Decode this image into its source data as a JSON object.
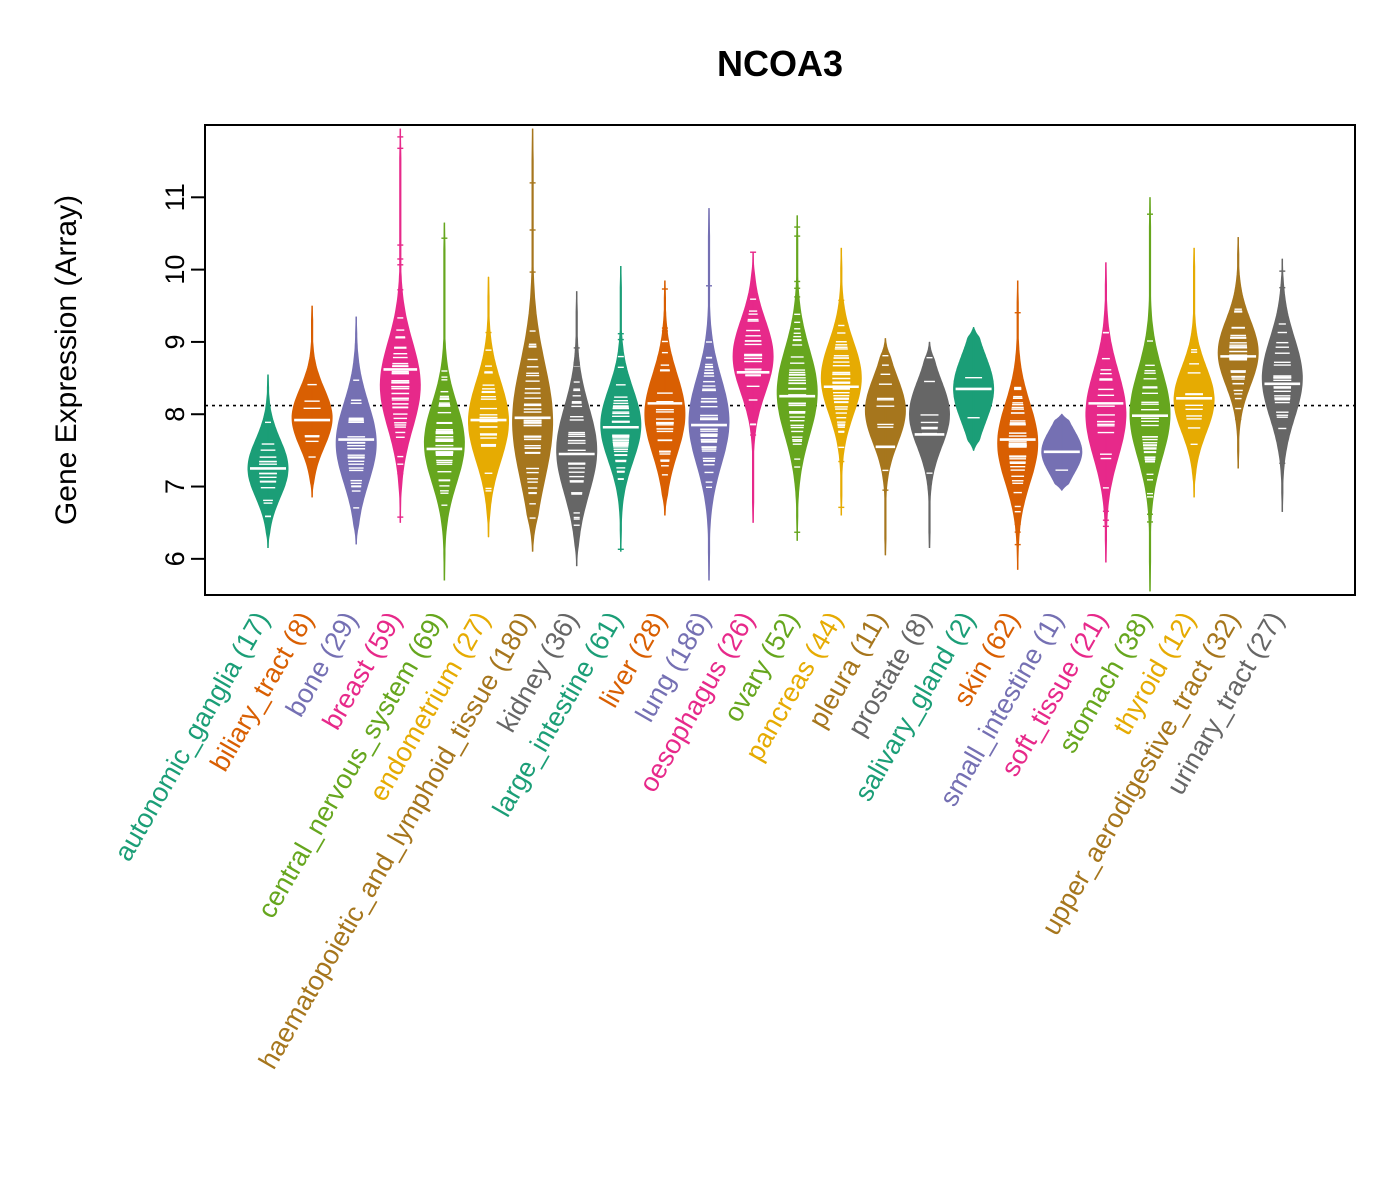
{
  "chart_data": {
    "type": "violin",
    "title": "NCOA3",
    "ylabel": "Gene Expression (Array)",
    "xlabel": "",
    "ylim": [
      5.5,
      12.0
    ],
    "yticks": [
      6,
      7,
      8,
      9,
      10,
      11
    ],
    "reference_line": 8.12,
    "grid": false,
    "categories": [
      {
        "label": "autonomic_ganglia (17)",
        "color": "#1B9E77",
        "min": 6.15,
        "max": 8.55,
        "median": 7.25,
        "mode": 7.25,
        "spread": 0.4
      },
      {
        "label": "biliary_tract (8)",
        "color": "#D95F02",
        "min": 6.85,
        "max": 9.5,
        "median": 7.92,
        "mode": 7.95,
        "spread": 0.4
      },
      {
        "label": "bone (29)",
        "color": "#7570B3",
        "min": 6.2,
        "max": 9.35,
        "median": 7.65,
        "mode": 7.6,
        "spread": 0.55
      },
      {
        "label": "breast (59)",
        "color": "#E7298A",
        "min": 6.5,
        "max": 11.95,
        "median": 8.62,
        "mode": 8.4,
        "spread": 0.6
      },
      {
        "label": "central_nervous_system (69)",
        "color": "#66A61E",
        "min": 5.7,
        "max": 10.65,
        "median": 7.52,
        "mode": 7.6,
        "spread": 0.55
      },
      {
        "label": "endometrium (27)",
        "color": "#E6AB02",
        "min": 6.3,
        "max": 9.9,
        "median": 7.92,
        "mode": 7.9,
        "spread": 0.55
      },
      {
        "label": "haematopoietic_and_lymphoid_tissue (180)",
        "color": "#A6761D",
        "min": 6.1,
        "max": 11.95,
        "median": 7.95,
        "mode": 7.9,
        "spread": 0.8
      },
      {
        "label": "kidney (36)",
        "color": "#666666",
        "min": 5.9,
        "max": 9.7,
        "median": 7.45,
        "mode": 7.5,
        "spread": 0.6
      },
      {
        "label": "large_intestine (61)",
        "color": "#1B9E77",
        "min": 6.1,
        "max": 10.05,
        "median": 7.82,
        "mode": 7.85,
        "spread": 0.5
      },
      {
        "label": "liver (28)",
        "color": "#D95F02",
        "min": 6.6,
        "max": 9.85,
        "median": 8.15,
        "mode": 8.0,
        "spread": 0.55
      },
      {
        "label": "lung (186)",
        "color": "#7570B3",
        "min": 5.7,
        "max": 10.85,
        "median": 7.85,
        "mode": 7.9,
        "spread": 0.6
      },
      {
        "label": "oesophagus (26)",
        "color": "#E7298A",
        "min": 6.5,
        "max": 10.25,
        "median": 8.58,
        "mode": 8.8,
        "spread": 0.5
      },
      {
        "label": "ovary (52)",
        "color": "#66A61E",
        "min": 6.25,
        "max": 10.75,
        "median": 8.25,
        "mode": 8.3,
        "spread": 0.6
      },
      {
        "label": "pancreas (44)",
        "color": "#E6AB02",
        "min": 6.6,
        "max": 10.3,
        "median": 8.38,
        "mode": 8.5,
        "spread": 0.5
      },
      {
        "label": "pleura (11)",
        "color": "#A6761D",
        "min": 6.05,
        "max": 9.05,
        "median": 7.55,
        "mode": 8.05,
        "spread": 0.45
      },
      {
        "label": "prostate (8)",
        "color": "#666666",
        "min": 6.15,
        "max": 9.0,
        "median": 7.72,
        "mode": 8.0,
        "spread": 0.45
      },
      {
        "label": "salivary_gland (2)",
        "color": "#1B9E77",
        "min": 7.5,
        "max": 9.2,
        "median": 8.35,
        "mode": 8.35,
        "spread": 0.45
      },
      {
        "label": "skin (62)",
        "color": "#D95F02",
        "min": 5.85,
        "max": 9.85,
        "median": 7.65,
        "mode": 7.6,
        "spread": 0.55
      },
      {
        "label": "small_intestine (1)",
        "color": "#7570B3",
        "min": 6.95,
        "max": 8.0,
        "median": 7.48,
        "mode": 7.48,
        "spread": 0.3
      },
      {
        "label": "soft_tissue (21)",
        "color": "#E7298A",
        "min": 5.95,
        "max": 10.1,
        "median": 8.15,
        "mode": 8.0,
        "spread": 0.6
      },
      {
        "label": "stomach (38)",
        "color": "#66A61E",
        "min": 5.55,
        "max": 11.0,
        "median": 7.98,
        "mode": 8.0,
        "spread": 0.6
      },
      {
        "label": "thyroid (12)",
        "color": "#E6AB02",
        "min": 6.85,
        "max": 10.3,
        "median": 8.22,
        "mode": 8.2,
        "spread": 0.45
      },
      {
        "label": "upper_aerodigestive_tract (32)",
        "color": "#A6761D",
        "min": 7.25,
        "max": 10.45,
        "median": 8.8,
        "mode": 8.85,
        "spread": 0.45
      },
      {
        "label": "urinary_tract (27)",
        "color": "#666666",
        "min": 6.65,
        "max": 10.15,
        "median": 8.42,
        "mode": 8.5,
        "spread": 0.55
      }
    ]
  }
}
